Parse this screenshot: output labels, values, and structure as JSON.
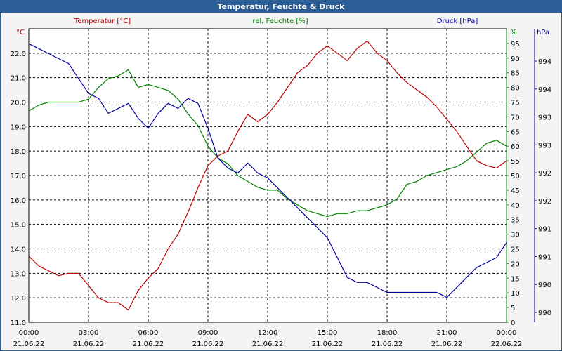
{
  "window": {
    "title": "Temperatur, Feuchte & Druck"
  },
  "colors": {
    "temperature": "#c00000",
    "humidity": "#008000",
    "pressure": "#0000a0",
    "grid": "#000000",
    "axis_text": "#000000"
  },
  "chart_data": {
    "type": "line",
    "title": "Temperatur, Feuchte & Druck",
    "grid": true,
    "legend": "top",
    "x": {
      "start": "21.06.22 00:00",
      "end": "22.06.22 00:00",
      "tick_times": [
        "00:00",
        "03:00",
        "06:00",
        "09:00",
        "12:00",
        "15:00",
        "18:00",
        "21:00",
        "00:00"
      ],
      "tick_dates": [
        "21.06.22",
        "21.06.22",
        "21.06.22",
        "21.06.22",
        "21.06.22",
        "21.06.22",
        "21.06.22",
        "21.06.22",
        "22.06.22"
      ]
    },
    "axes": {
      "left": {
        "label": "Temperatur [°C]",
        "unit": "°C",
        "range": [
          11.0,
          23.0
        ],
        "ticks": [
          "22.0",
          "21.0",
          "20.0",
          "19.0",
          "18.0",
          "17.0",
          "16.0",
          "15.0",
          "14.0",
          "13.0",
          "12.0",
          "11.0"
        ]
      },
      "right1": {
        "label": "rel. Feuchte [%]",
        "unit": "%",
        "range": [
          0,
          100
        ],
        "ticks": [
          "95",
          "90",
          "85",
          "80",
          "75",
          "70",
          "65",
          "60",
          "55",
          "50",
          "45",
          "40",
          "35",
          "30",
          "25",
          "20",
          "15",
          "10",
          "5",
          "0"
        ]
      },
      "right2": {
        "label": "Druck [hPa]",
        "unit": "hPa",
        "range": [
          989.3,
          995.2
        ],
        "ticks": [
          "994",
          "994",
          "993",
          "993",
          "992",
          "992",
          "991",
          "991",
          "990",
          "990"
        ]
      }
    },
    "series": [
      {
        "name": "Temperatur [°C]",
        "axis": "left",
        "x_hours": [
          0,
          0.5,
          1,
          1.5,
          2,
          2.5,
          3,
          3.5,
          4,
          4.5,
          5,
          5.5,
          6,
          6.5,
          7,
          7.5,
          8,
          8.5,
          9,
          9.5,
          10,
          10.5,
          11,
          11.5,
          12,
          12.5,
          13,
          13.5,
          14,
          14.5,
          15,
          15.5,
          16,
          16.5,
          17,
          17.5,
          18,
          18.5,
          19,
          19.5,
          20,
          20.5,
          21,
          21.5,
          22,
          22.5,
          23,
          23.5,
          24
        ],
        "values": [
          13.7,
          13.3,
          13.1,
          12.9,
          13.0,
          13.0,
          12.5,
          12.0,
          11.8,
          11.8,
          11.5,
          12.3,
          12.8,
          13.2,
          14.0,
          14.6,
          15.5,
          16.5,
          17.4,
          17.8,
          18.0,
          18.8,
          19.5,
          19.2,
          19.5,
          20.0,
          20.6,
          21.2,
          21.5,
          22.0,
          22.3,
          22.0,
          21.7,
          22.2,
          22.5,
          22.0,
          21.7,
          21.2,
          20.8,
          20.5,
          20.2,
          19.8,
          19.3,
          18.8,
          18.2,
          17.6,
          17.4,
          17.3,
          17.6
        ]
      },
      {
        "name": "rel. Feuchte [%]",
        "axis": "right1",
        "x_hours": [
          0,
          0.5,
          1,
          1.5,
          2,
          2.5,
          3,
          3.5,
          4,
          4.5,
          5,
          5.5,
          6,
          6.5,
          7,
          7.5,
          8,
          8.5,
          9,
          9.5,
          10,
          10.5,
          11,
          11.5,
          12,
          12.5,
          13,
          13.5,
          14,
          14.5,
          15,
          15.5,
          16,
          16.5,
          17,
          17.5,
          18,
          18.5,
          19,
          19.5,
          20,
          20.5,
          21,
          21.5,
          22,
          22.5,
          23,
          23.5,
          24
        ],
        "values": [
          72,
          74,
          75,
          75,
          75,
          75,
          76,
          80,
          83,
          84,
          86,
          80,
          81,
          80,
          79,
          76,
          71,
          67,
          60,
          56,
          54,
          50,
          48,
          46,
          45,
          45,
          42,
          40,
          38,
          37,
          36,
          37,
          37,
          38,
          38,
          39,
          40,
          42,
          47,
          48,
          50,
          51,
          52,
          53,
          55,
          58,
          61,
          62,
          60
        ]
      },
      {
        "name": "Druck [hPa]",
        "axis": "right2",
        "x_hours": [
          0,
          0.5,
          1,
          1.5,
          2,
          2.5,
          3,
          3.5,
          4,
          4.5,
          5,
          5.5,
          6,
          6.5,
          7,
          7.5,
          8,
          8.5,
          9,
          9.5,
          10,
          10.5,
          11,
          11.5,
          12,
          12.5,
          13,
          13.5,
          14,
          14.5,
          15,
          15.5,
          16,
          16.5,
          17,
          17.5,
          18,
          18.5,
          19,
          19.5,
          20,
          20.5,
          21,
          21.5,
          22,
          22.5,
          23,
          23.5,
          24
        ],
        "values": [
          994.9,
          994.8,
          994.7,
          994.6,
          994.5,
          994.2,
          993.9,
          993.8,
          993.5,
          993.6,
          993.7,
          993.4,
          993.2,
          993.5,
          993.7,
          993.6,
          993.8,
          993.7,
          993.2,
          992.6,
          992.4,
          992.3,
          992.5,
          992.3,
          992.2,
          992.0,
          991.8,
          991.6,
          991.4,
          991.2,
          991.0,
          990.6,
          990.2,
          990.1,
          990.1,
          990.0,
          989.9,
          989.9,
          989.9,
          989.9,
          989.9,
          989.9,
          989.8,
          990.0,
          990.2,
          990.4,
          990.5,
          990.6,
          990.9
        ]
      }
    ]
  }
}
